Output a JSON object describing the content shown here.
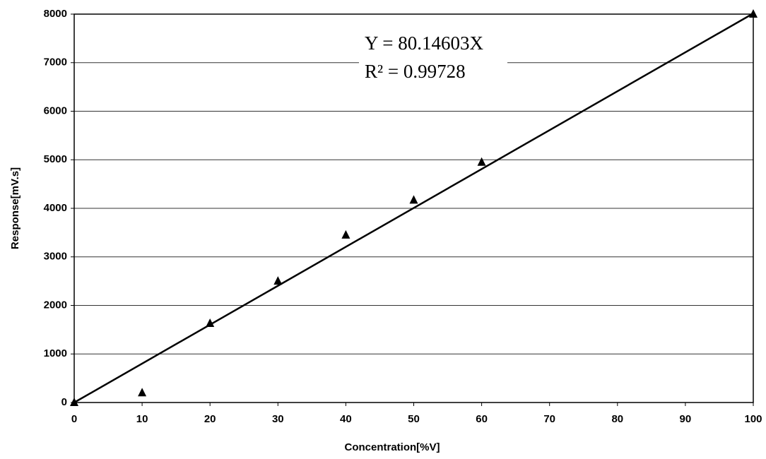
{
  "chart_data": {
    "type": "scatter",
    "x_label": "Concentration[%V]",
    "y_label": "Response[mV.s]",
    "annotations": [
      "Y = 80.14603X",
      "R² = 0.99728"
    ],
    "trendline_slope": 80.14603,
    "series": [
      {
        "color": "#000000",
        "x": [
          0,
          10,
          20,
          30,
          40,
          50,
          60,
          100
        ],
        "values": [
          0,
          200,
          1630,
          2500,
          3450,
          4170,
          4950,
          8000
        ]
      }
    ],
    "xlim": [
      0,
      100
    ],
    "xticks": [
      0,
      10,
      20,
      30,
      40,
      50,
      60,
      70,
      80,
      90,
      100
    ],
    "ylim": [
      0,
      8000
    ],
    "yticks": [
      0,
      1000,
      2000,
      3000,
      4000,
      5000,
      6000,
      7000,
      8000
    ],
    "grid": true
  }
}
